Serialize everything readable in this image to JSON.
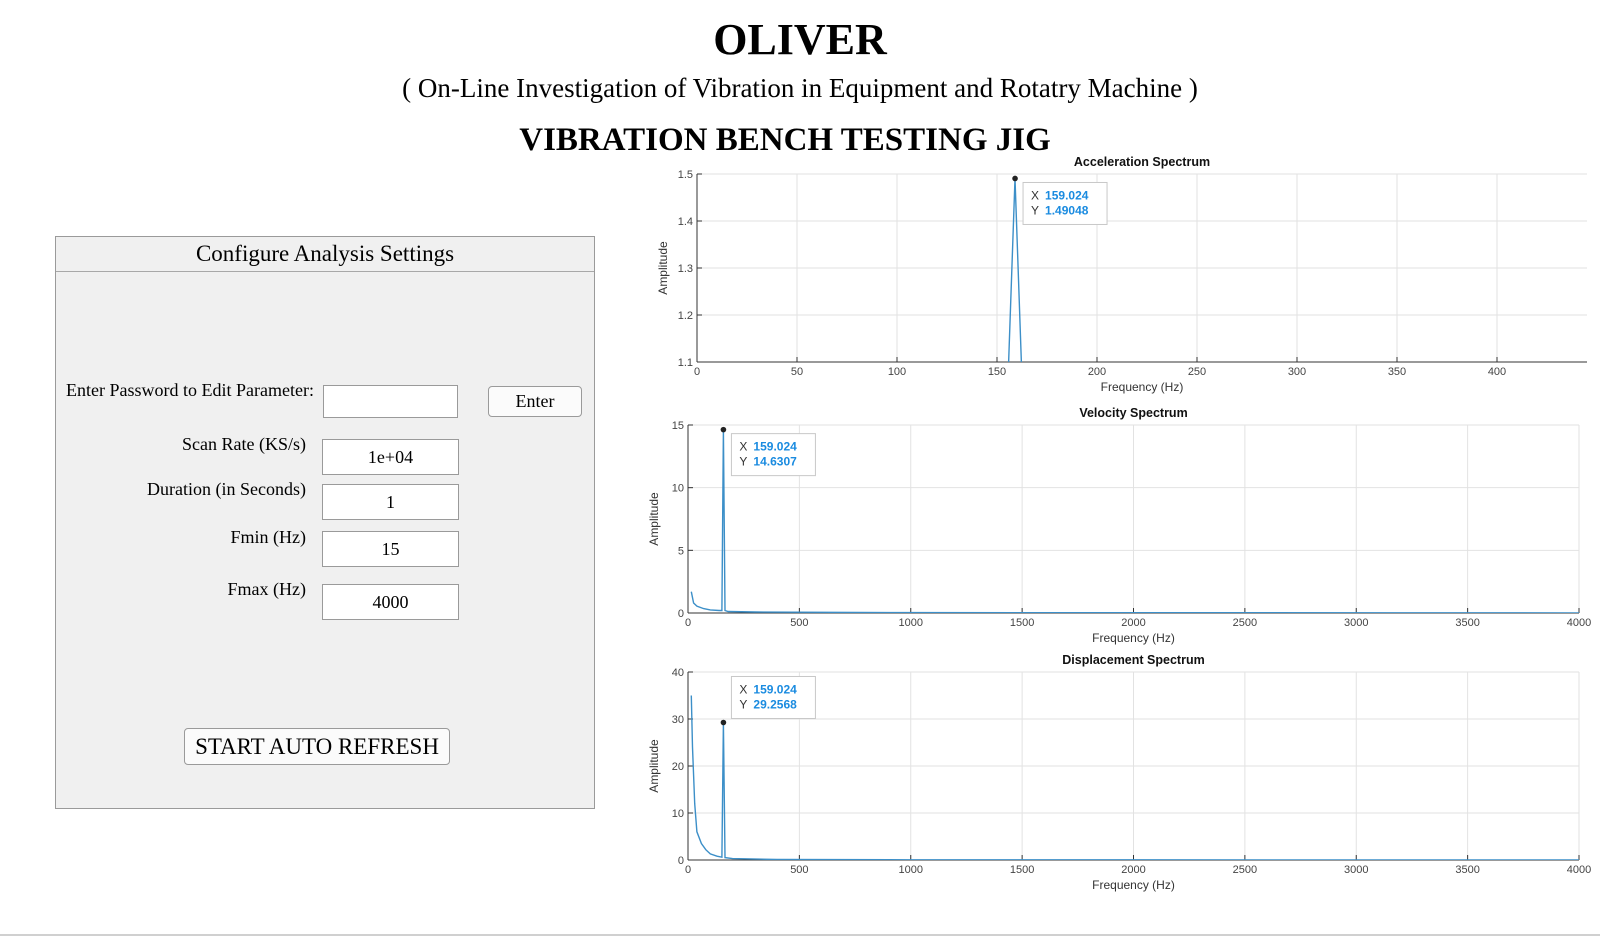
{
  "header": {
    "title": "OLIVER",
    "subtitle": "( On-Line Investigation of Vibration in Equipment and Rotatry Machine )",
    "heading": "VIBRATION BENCH TESTING JIG"
  },
  "settings": {
    "panel_title": "Configure Analysis Settings",
    "password_label": "Enter Password to Edit Parameter:",
    "password_value": "",
    "enter_button": "Enter",
    "scan_rate_label": "Scan Rate (KS/s)",
    "scan_rate_value": "1e+04",
    "duration_label": "Duration (in Seconds)",
    "duration_value": "1",
    "fmin_label": "Fmin (Hz)",
    "fmin_value": "15",
    "fmax_label": "Fmax (Hz)",
    "fmax_value": "4000",
    "start_button": "START AUTO REFRESH"
  },
  "colors": {
    "series": "#3c8fc8",
    "datatip_value": "#1a8be0",
    "panel_bg": "#f0f0f0"
  },
  "chart_data": [
    {
      "type": "line",
      "title": "Acceleration Spectrum",
      "xlabel": "Frequency (Hz)",
      "ylabel": "Amplitude",
      "xlim": [
        0,
        445
      ],
      "ylim": [
        1.1,
        1.5
      ],
      "xticks": [
        0,
        50,
        100,
        150,
        200,
        250,
        300,
        350,
        400
      ],
      "yticks": [
        1.1,
        1.2,
        1.3,
        1.4,
        1.5
      ],
      "ytick_labels": [
        "1.1",
        "1.2",
        "1.3",
        "1.4",
        "1.5"
      ],
      "grid": true,
      "series": [
        {
          "x": [
            155,
            159.024,
            163
          ],
          "y": [
            1.0,
            1.49048,
            1.0
          ]
        }
      ],
      "datatip": {
        "x": 159.024,
        "y": 1.49048,
        "x_label": "X",
        "y_label": "Y",
        "x_text": "159.024",
        "y_text": "1.49048"
      }
    },
    {
      "type": "line",
      "title": "Velocity Spectrum",
      "xlabel": "Frequency (Hz)",
      "ylabel": "Amplitude",
      "xlim": [
        0,
        4000
      ],
      "ylim": [
        0,
        15
      ],
      "xticks": [
        0,
        500,
        1000,
        1500,
        2000,
        2500,
        3000,
        3500,
        4000
      ],
      "yticks": [
        0,
        5,
        10,
        15
      ],
      "ytick_labels": [
        "0",
        "5",
        "10",
        "15"
      ],
      "grid": true,
      "series": [
        {
          "x": [
            15,
            25,
            40,
            70,
            100,
            140,
            152,
            159.024,
            166,
            180,
            300,
            1000,
            4000
          ],
          "y": [
            1.7,
            0.8,
            0.55,
            0.35,
            0.25,
            0.2,
            0.2,
            14.6307,
            0.2,
            0.12,
            0.08,
            0.03,
            0.01
          ]
        }
      ],
      "datatip": {
        "x": 159.024,
        "y": 14.6307,
        "x_label": "X",
        "y_label": "Y",
        "x_text": "159.024",
        "y_text": "14.6307"
      }
    },
    {
      "type": "line",
      "title": "Displacement Spectrum",
      "xlabel": "Frequency (Hz)",
      "ylabel": "Amplitude",
      "xlim": [
        0,
        4000
      ],
      "ylim": [
        0,
        40
      ],
      "xticks": [
        0,
        500,
        1000,
        1500,
        2000,
        2500,
        3000,
        3500,
        4000
      ],
      "yticks": [
        0,
        10,
        20,
        30,
        40
      ],
      "ytick_labels": [
        "0",
        "10",
        "20",
        "30",
        "40"
      ],
      "grid": true,
      "series": [
        {
          "x": [
            15,
            20,
            30,
            40,
            60,
            80,
            100,
            130,
            152,
            159.024,
            166,
            200,
            400,
            1000,
            4000
          ],
          "y": [
            35,
            24,
            12,
            6,
            3.5,
            2.2,
            1.3,
            0.8,
            0.6,
            29.2568,
            0.5,
            0.3,
            0.1,
            0.04,
            0.01
          ]
        }
      ],
      "datatip": {
        "x": 159.024,
        "y": 29.2568,
        "x_label": "X",
        "y_label": "Y",
        "x_text": "159.024",
        "y_text": "29.2568"
      }
    }
  ]
}
